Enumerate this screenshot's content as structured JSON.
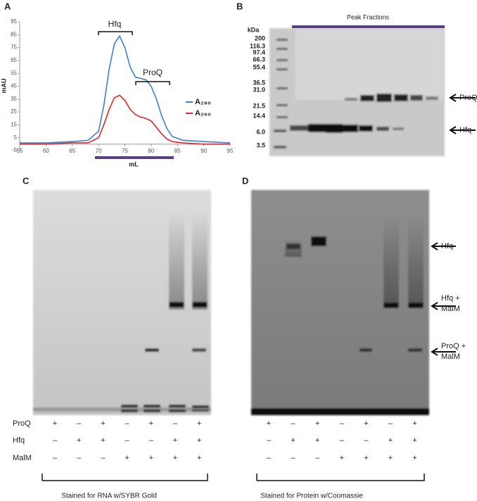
{
  "panels": {
    "a": "A",
    "b": "B",
    "c": "C",
    "d": "D"
  },
  "chart_data": {
    "type": "line",
    "ylabel": "mAU",
    "xlabel": "mL",
    "x": [
      55,
      60,
      65,
      68,
      70,
      71,
      72,
      73,
      74,
      75,
      76,
      77,
      78,
      79,
      80,
      81,
      82,
      83,
      84,
      86,
      90,
      95
    ],
    "series": [
      {
        "name": "A₂₈₀",
        "color": "#3c7fcb",
        "values": [
          1,
          1,
          2,
          3,
          10,
          30,
          58,
          78,
          84,
          75,
          60,
          52,
          51,
          50,
          45,
          35,
          22,
          12,
          6,
          3,
          2,
          1
        ]
      },
      {
        "name": "A₂₆₀",
        "color": "#e0262a",
        "values": [
          0,
          0,
          1,
          1,
          5,
          15,
          27,
          36,
          38,
          34,
          27,
          23,
          21,
          20,
          18,
          13,
          8,
          4,
          2,
          1,
          0,
          0
        ]
      }
    ],
    "xlim": [
      55,
      95
    ],
    "xticks": [
      55,
      60,
      65,
      70,
      75,
      80,
      85,
      90,
      95
    ],
    "ylim": [
      -5,
      95
    ],
    "yticks": [
      -5,
      5,
      15,
      25,
      35,
      45,
      55,
      65,
      75,
      85,
      95
    ],
    "annotations": [
      "Hfq",
      "ProQ"
    ]
  },
  "panel_b": {
    "title": "Peak Fractions",
    "marker_unit": "kDa",
    "markers": [
      "200",
      "116.3",
      "97.4",
      "66.3",
      "55.4",
      "36.5",
      "31.0",
      "21.5",
      "14.4",
      "6.0",
      "3.5"
    ],
    "labels": [
      "ProQ",
      "Hfq"
    ]
  },
  "panel_c": {
    "rows": [
      {
        "label": "ProQ",
        "signs": [
          "+",
          "–",
          "+",
          "–",
          "+",
          "–",
          "+"
        ]
      },
      {
        "label": "Hfq",
        "signs": [
          "–",
          "+",
          "+",
          "–",
          "–",
          "+",
          "+"
        ]
      },
      {
        "label": "MalM",
        "signs": [
          "–",
          "–",
          "–",
          "+",
          "+",
          "+",
          "+"
        ]
      }
    ],
    "caption": "Stained for RNA w/SYBR Gold"
  },
  "panel_d": {
    "rows": [
      {
        "label": "ProQ",
        "signs": [
          "+",
          "–",
          "+",
          "–",
          "+",
          "–",
          "+"
        ]
      },
      {
        "label": "Hfq",
        "signs": [
          "–",
          "+",
          "+",
          "–",
          "–",
          "+",
          "+"
        ]
      },
      {
        "label": "MalM",
        "signs": [
          "–",
          "–",
          "–",
          "+",
          "+",
          "+",
          "+"
        ]
      }
    ],
    "labels": [
      "Hfq",
      "Hfq +",
      "MalM",
      "ProQ +",
      "MalM"
    ],
    "caption": "Stained for Protein w/Coomassie"
  }
}
